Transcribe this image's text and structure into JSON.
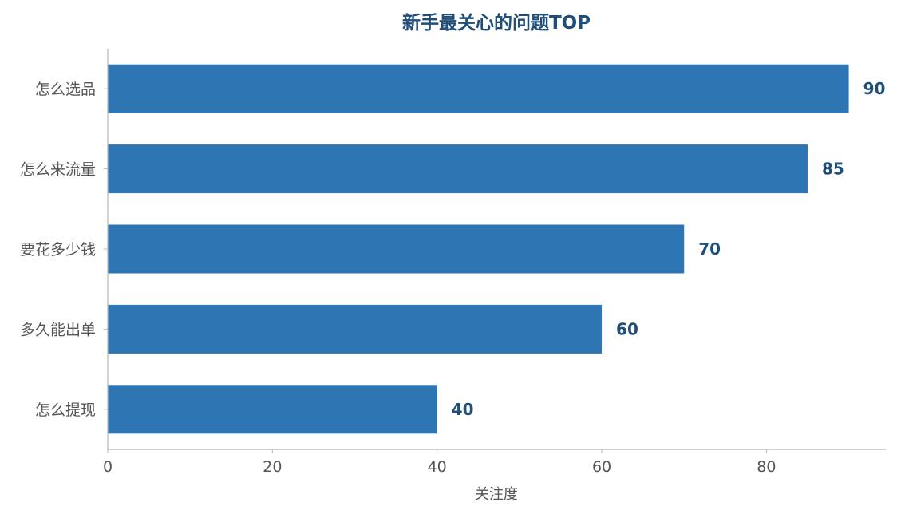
{
  "chart_data": {
    "type": "bar",
    "orientation": "horizontal",
    "title": "新手最关心的问题TOP",
    "xlabel": "关注度",
    "ylabel": "",
    "categories": [
      "怎么选品",
      "怎么来流量",
      "要花多少钱",
      "多久能出单",
      "怎么提现"
    ],
    "values": [
      90,
      85,
      70,
      60,
      40
    ],
    "xlim": [
      0,
      94.5
    ],
    "xticks": [
      0,
      20,
      40,
      60,
      80
    ],
    "grid": false,
    "legend": "none",
    "bar_color": "#2e75b4",
    "label_color": "#1f4e79",
    "title_color": "#1f4e79",
    "axis_color": "#b3b3b3",
    "tick_label_color": "#555555"
  }
}
